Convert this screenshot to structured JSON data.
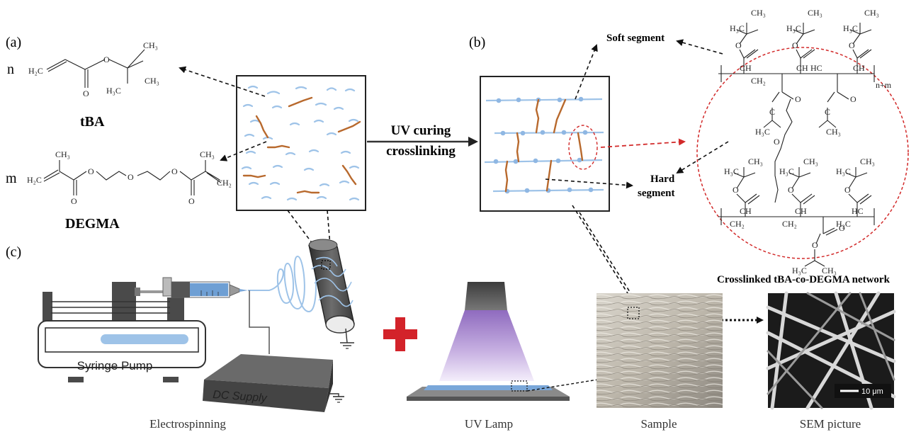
{
  "panels": {
    "a": "(a)",
    "b": "(b)",
    "c": "(c)"
  },
  "monomers": {
    "tba": {
      "coef": "n",
      "name": "tBA",
      "h2c": "H₂C",
      "ch3_top": "CH₃",
      "h3c": "H₃C",
      "ch3_right": "CH₃",
      "o": "O"
    },
    "degma": {
      "coef": "m",
      "name": "DEGMA",
      "h2c": "H₂C",
      "ch3_a": "CH₃",
      "ch3_b": "CH₃",
      "ch2": "CH₂",
      "o": "O"
    }
  },
  "process": {
    "uv_line1": "UV curing",
    "uv_line2": "crosslinking"
  },
  "network": {
    "soft_segment": "Soft segment",
    "hard_segment_1": "Hard",
    "hard_segment_2": "segment",
    "repeat_label": "n+m",
    "caption": "Crosslinked tBA-co-DEGMA network",
    "ch": "CH",
    "hc": "HC",
    "ch2": "CH₂",
    "h2c": "H₂C",
    "ch3": "CH₃",
    "h3c": "H₃C",
    "o": "O",
    "c": "C"
  },
  "setup": {
    "syringe_pump": "Syringe Pump",
    "dc_supply": "DC Supply",
    "electrospinning": "Electrospinning",
    "uv_lamp": "UV Lamp",
    "sample": "Sample",
    "sem_picture": "SEM picture",
    "scale_bar": "10 μm"
  },
  "colors": {
    "fiber_blue": "#9ec3e8",
    "crosslink_orange": "#b8692d",
    "plus_red": "#d3232a",
    "red_dash": "#d22a2a",
    "pump_gray": "#5a5a5a",
    "dc_box": "#555555",
    "lamp_purple": "#a07cc8"
  }
}
